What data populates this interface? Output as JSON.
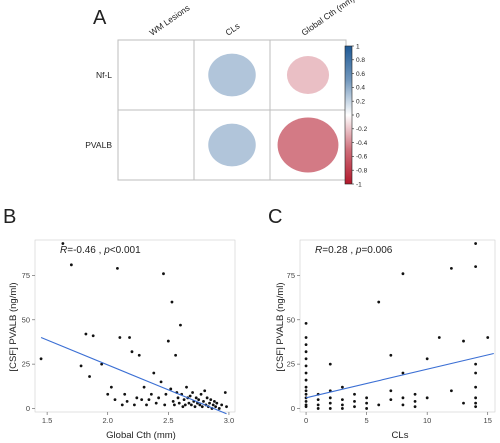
{
  "panels": {
    "a": "A",
    "b": "B",
    "c": "C"
  },
  "colors": {
    "line": "#3b6fd4",
    "point": "#111111",
    "positive": "#2f6ba8",
    "negative": "#c0392b"
  },
  "chart_data": [
    {
      "type": "heatmap",
      "panel": "A",
      "columns": [
        "WM Lesions",
        "CLs",
        "Global Cth (mm)"
      ],
      "rows": [
        "Nf-L",
        "PVALB"
      ],
      "values": [
        [
          null,
          0.28,
          -0.22
        ],
        [
          null,
          0.28,
          -0.46
        ]
      ],
      "colorbar": {
        "range": [
          -1,
          1
        ],
        "ticks": [
          "1",
          "0.8",
          "0.6",
          "0.4",
          "0.2",
          "0",
          "-0.2",
          "-0.4",
          "-0.6",
          "-0.8",
          "-1"
        ]
      }
    },
    {
      "type": "scatter",
      "panel": "B",
      "annotation": {
        "r_label": "R",
        "r_value": "=-0.46",
        "sep": " , ",
        "p_label": "p",
        "p_value": "<0.001"
      },
      "xlabel": "Global Cth (mm)",
      "ylabel": "[CSF] PVALB (ng/ml)",
      "xlim": [
        1.4,
        3.05
      ],
      "ylim": [
        -2,
        95
      ],
      "xticks": [
        1.5,
        2.0,
        2.5,
        3.0
      ],
      "xtick_labels": [
        "1.5",
        "2.0",
        "2.5",
        "3.0"
      ],
      "yticks": [
        0,
        25,
        50,
        75
      ],
      "ytick_labels": [
        "0",
        "25",
        "50",
        "75"
      ],
      "fit": {
        "x": [
          1.45,
          2.98
        ],
        "y": [
          40,
          -3
        ]
      },
      "points": [
        [
          1.45,
          28
        ],
        [
          1.63,
          93
        ],
        [
          1.7,
          81
        ],
        [
          1.78,
          24
        ],
        [
          1.82,
          42
        ],
        [
          1.85,
          18
        ],
        [
          1.88,
          41
        ],
        [
          1.95,
          25
        ],
        [
          2.0,
          8
        ],
        [
          2.03,
          12
        ],
        [
          2.06,
          5
        ],
        [
          2.08,
          79
        ],
        [
          2.1,
          40
        ],
        [
          2.12,
          2
        ],
        [
          2.14,
          8
        ],
        [
          2.16,
          4
        ],
        [
          2.18,
          40
        ],
        [
          2.2,
          32
        ],
        [
          2.22,
          2
        ],
        [
          2.24,
          6
        ],
        [
          2.26,
          30
        ],
        [
          2.28,
          5
        ],
        [
          2.3,
          12
        ],
        [
          2.32,
          2
        ],
        [
          2.34,
          5
        ],
        [
          2.36,
          8
        ],
        [
          2.38,
          20
        ],
        [
          2.4,
          3
        ],
        [
          2.42,
          6
        ],
        [
          2.44,
          15
        ],
        [
          2.46,
          76
        ],
        [
          2.47,
          2
        ],
        [
          2.48,
          8
        ],
        [
          2.5,
          38
        ],
        [
          2.52,
          11
        ],
        [
          2.53,
          60
        ],
        [
          2.54,
          4
        ],
        [
          2.55,
          2
        ],
        [
          2.56,
          30
        ],
        [
          2.57,
          9
        ],
        [
          2.58,
          6
        ],
        [
          2.59,
          3
        ],
        [
          2.6,
          47
        ],
        [
          2.61,
          8
        ],
        [
          2.62,
          1
        ],
        [
          2.63,
          5
        ],
        [
          2.64,
          2
        ],
        [
          2.65,
          12
        ],
        [
          2.66,
          6
        ],
        [
          2.67,
          3
        ],
        [
          2.68,
          7
        ],
        [
          2.69,
          2
        ],
        [
          2.7,
          9
        ],
        [
          2.71,
          4
        ],
        [
          2.72,
          1
        ],
        [
          2.73,
          6
        ],
        [
          2.74,
          3
        ],
        [
          2.75,
          5
        ],
        [
          2.76,
          2
        ],
        [
          2.77,
          8
        ],
        [
          2.78,
          1
        ],
        [
          2.79,
          4
        ],
        [
          2.8,
          10
        ],
        [
          2.81,
          2
        ],
        [
          2.82,
          6
        ],
        [
          2.83,
          1
        ],
        [
          2.84,
          3
        ],
        [
          2.85,
          5
        ],
        [
          2.86,
          0
        ],
        [
          2.87,
          2
        ],
        [
          2.88,
          4
        ],
        [
          2.89,
          1
        ],
        [
          2.9,
          3
        ],
        [
          2.92,
          0
        ],
        [
          2.94,
          2
        ],
        [
          2.97,
          9
        ],
        [
          2.98,
          1
        ]
      ]
    },
    {
      "type": "scatter",
      "panel": "C",
      "annotation": {
        "r_label": "R",
        "r_value": "=0.28",
        "sep": " , ",
        "p_label": "p",
        "p_value": "=0.006"
      },
      "xlabel": "CLs",
      "ylabel": "[CSF] PVALB (ng/ml)",
      "xlim": [
        -0.5,
        15.6
      ],
      "ylim": [
        -2,
        95
      ],
      "xticks": [
        0,
        5,
        10,
        15
      ],
      "xtick_labels": [
        "0",
        "5",
        "10",
        "15"
      ],
      "yticks": [
        0,
        25,
        50,
        75
      ],
      "ytick_labels": [
        "0",
        "25",
        "50",
        "75"
      ],
      "fit": {
        "x": [
          0,
          15.5
        ],
        "y": [
          6,
          31
        ]
      },
      "points": [
        [
          0,
          48
        ],
        [
          0,
          40
        ],
        [
          0,
          36
        ],
        [
          0,
          32
        ],
        [
          0,
          28
        ],
        [
          0,
          24
        ],
        [
          0,
          20
        ],
        [
          0,
          16
        ],
        [
          0,
          12
        ],
        [
          0,
          10
        ],
        [
          0,
          8
        ],
        [
          0,
          6
        ],
        [
          0,
          4
        ],
        [
          0,
          2
        ],
        [
          0,
          1
        ],
        [
          1,
          8
        ],
        [
          1,
          5
        ],
        [
          1,
          2
        ],
        [
          1,
          0
        ],
        [
          2,
          25
        ],
        [
          2,
          10
        ],
        [
          2,
          6
        ],
        [
          2,
          3
        ],
        [
          2,
          0
        ],
        [
          3,
          12
        ],
        [
          3,
          5
        ],
        [
          3,
          2
        ],
        [
          3,
          0
        ],
        [
          4,
          8
        ],
        [
          4,
          4
        ],
        [
          4,
          1
        ],
        [
          5,
          6
        ],
        [
          5,
          3
        ],
        [
          5,
          0
        ],
        [
          6,
          60
        ],
        [
          6,
          2
        ],
        [
          7,
          30
        ],
        [
          7,
          10
        ],
        [
          7,
          5
        ],
        [
          8,
          76
        ],
        [
          8,
          20
        ],
        [
          8,
          6
        ],
        [
          8,
          2
        ],
        [
          9,
          8
        ],
        [
          9,
          4
        ],
        [
          9,
          1
        ],
        [
          10,
          28
        ],
        [
          10,
          6
        ],
        [
          11,
          40
        ],
        [
          12,
          79
        ],
        [
          12,
          10
        ],
        [
          13,
          38
        ],
        [
          13,
          3
        ],
        [
          14,
          93
        ],
        [
          14,
          80
        ],
        [
          14,
          25
        ],
        [
          14,
          20
        ],
        [
          14,
          12
        ],
        [
          14,
          6
        ],
        [
          14,
          3
        ],
        [
          14,
          1
        ],
        [
          15,
          40
        ]
      ]
    }
  ]
}
